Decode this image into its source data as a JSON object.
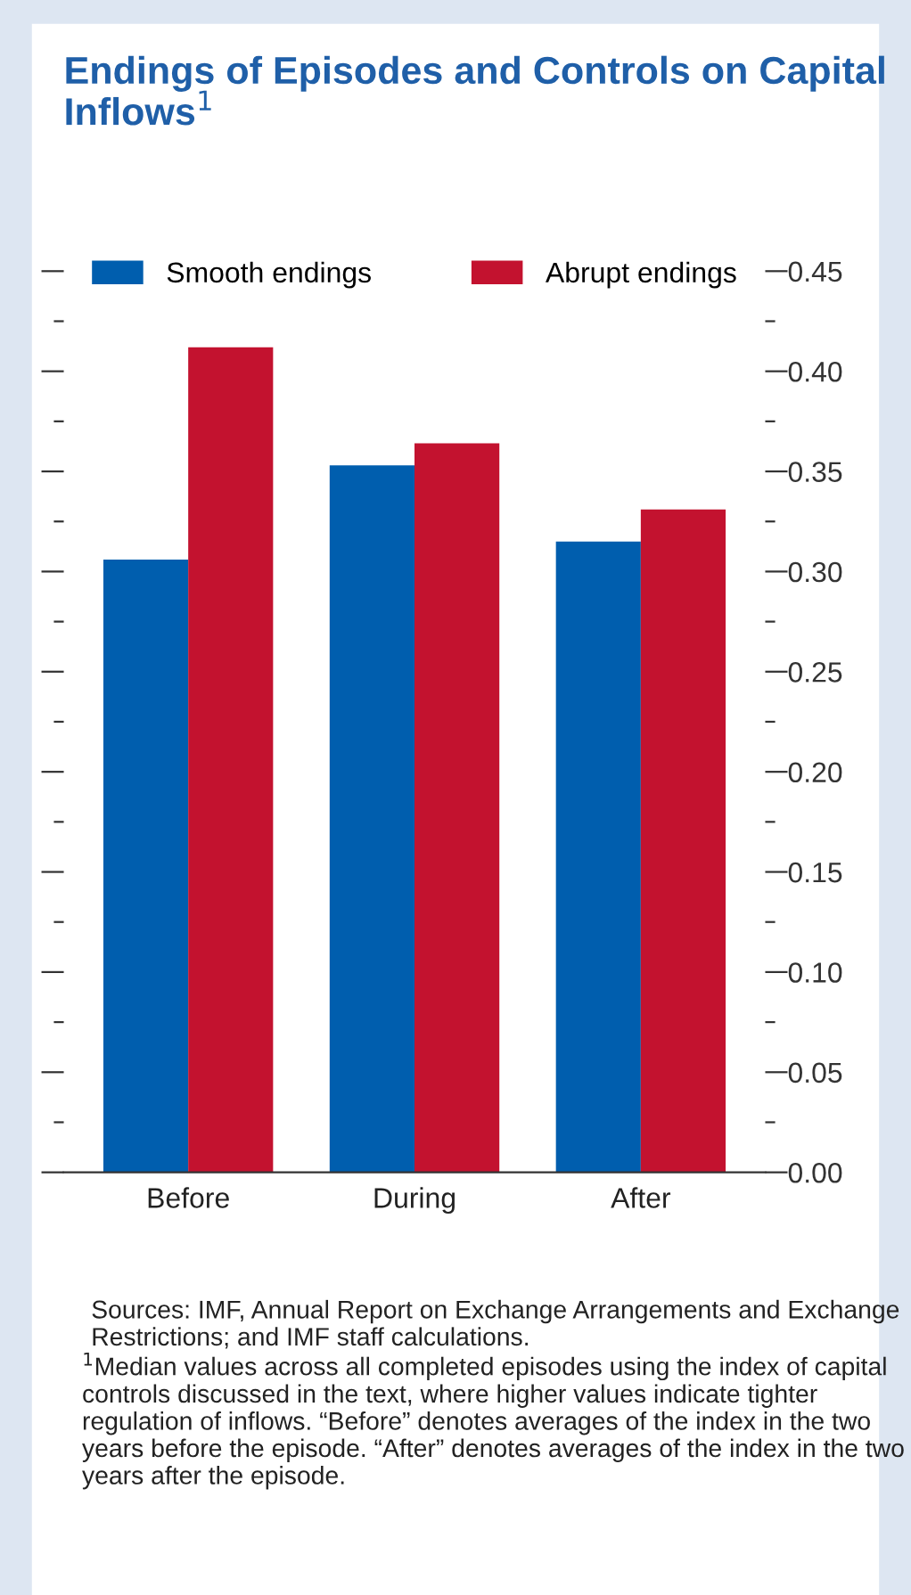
{
  "chart_data": {
    "type": "bar",
    "title": "Endings of Episodes and Controls on Capital Inflows$^{1}$",
    "categories": [
      "Before",
      "During",
      "After"
    ],
    "series": [
      {
        "name": "Smooth endings",
        "color": "#005eae",
        "values": [
          0.306,
          0.353,
          0.315
        ]
      },
      {
        "name": "Abrupt endings",
        "color": "#c3122f",
        "values": [
          0.412,
          0.364,
          0.331
        ]
      }
    ],
    "ylim": [
      0,
      0.45
    ],
    "yticks": [
      {
        "value": 0,
        "label": "0.00"
      },
      {
        "value": 0.025,
        "label": null
      },
      {
        "value": 0.05,
        "label": "0.05"
      },
      {
        "value": 0.075,
        "label": null
      },
      {
        "value": 0.1,
        "label": "0.10"
      },
      {
        "value": 0.125,
        "label": null
      },
      {
        "value": 0.15,
        "label": "0.15"
      },
      {
        "value": 0.175,
        "label": null
      },
      {
        "value": 0.2,
        "label": "0.20"
      },
      {
        "value": 0.225,
        "label": null
      },
      {
        "value": 0.25,
        "label": "0.25"
      },
      {
        "value": 0.275,
        "label": null
      },
      {
        "value": 0.3,
        "label": "0.30"
      },
      {
        "value": 0.325,
        "label": null
      },
      {
        "value": 0.35,
        "label": "0.35"
      },
      {
        "value": 0.375,
        "label": null
      },
      {
        "value": 0.4,
        "label": "0.40"
      },
      {
        "value": 0.425,
        "label": null
      },
      {
        "value": 0.45,
        "label": "0.45"
      }
    ],
    "grid": false,
    "legend": "top",
    "annotations": [
      "Sources: IMF, Annual Report on Exchange Arrangements and Exchange Restrictions; and IMF staff calculations.",
      "$^{1}$Median values across all completed episodes using the index of capital controls discussed in the text, where higher values indicate tighter regulation of inflows. “Before” denotes averages of the index in the two years before the episode. “After” denotes averages of the index in the two years after the episode."
    ]
  }
}
